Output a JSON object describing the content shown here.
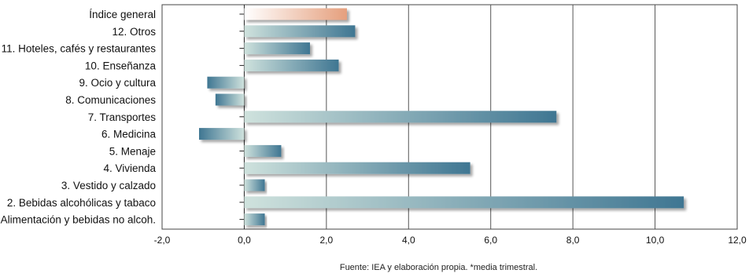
{
  "chart_data": {
    "type": "bar",
    "orientation": "horizontal",
    "categories": [
      "Índice general",
      "12. Otros",
      "11. Hoteles, cafés y restaurantes",
      "10. Enseñanza",
      "9. Ocio y cultura",
      "8. Comunicaciones",
      "7. Transportes",
      "6. Medicina",
      "5. Menaje",
      "4. Vivienda",
      "3. Vestido y calzado",
      "2. Bebidas alcohólicas y tabaco",
      "1. Alimentación y bebidas no alcoh."
    ],
    "values": [
      2.5,
      2.7,
      1.6,
      2.3,
      -0.9,
      -0.7,
      7.6,
      -1.1,
      0.9,
      5.5,
      0.5,
      10.7,
      0.5
    ],
    "highlight_category": "Índice general",
    "xlim": [
      -2,
      12
    ],
    "xticks": [
      -2,
      0,
      2,
      4,
      6,
      8,
      10,
      12
    ],
    "xtick_labels": [
      "-2,0",
      "0,0",
      "2,0",
      "4,0",
      "6,0",
      "8,0",
      "10,0",
      "12,0"
    ],
    "grid": "vertical",
    "colors": {
      "bar_light": "#cfe2dd",
      "bar_dark": "#3f7692",
      "highlight_light": "#ffffff",
      "highlight_dark": "#e59f7d",
      "grid": "#555555"
    },
    "source_note": "Fuente: IEA y elaboración propia. *media trimestral."
  }
}
